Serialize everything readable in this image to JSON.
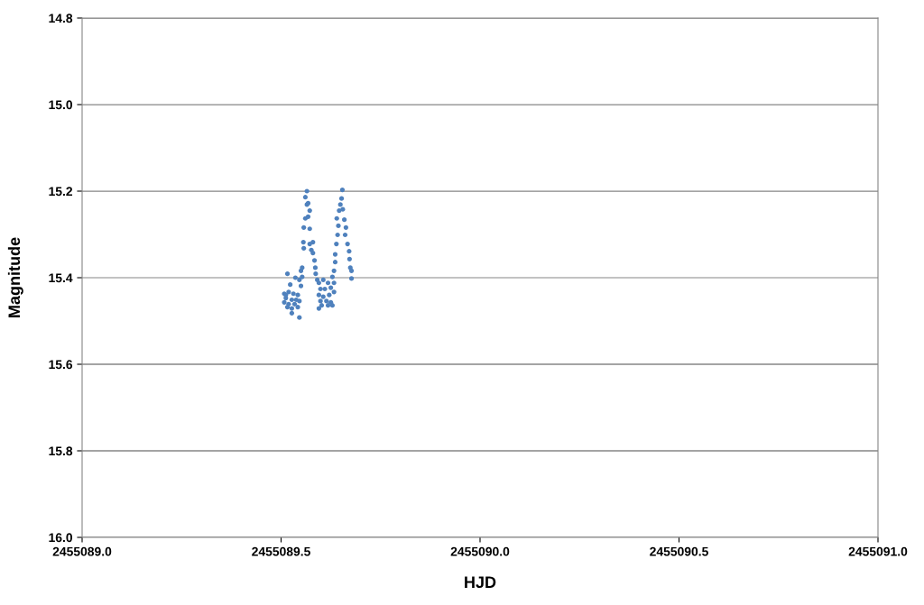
{
  "chart_data": {
    "type": "scatter",
    "xlabel": "HJD",
    "ylabel": "Magnitude",
    "xlim": [
      2455089.0,
      2455091.0
    ],
    "xticks": [
      {
        "value": 2455089.0,
        "label": "2455089.0"
      },
      {
        "value": 2455089.5,
        "label": "2455089.5"
      },
      {
        "value": 2455090.0,
        "label": "2455090.0"
      },
      {
        "value": 2455090.5,
        "label": "2455090.5"
      },
      {
        "value": 2455091.0,
        "label": "2455091.0"
      }
    ],
    "ylim": [
      16.0,
      14.8
    ],
    "yticks": [
      {
        "value": 14.8,
        "label": "14.8"
      },
      {
        "value": 15.0,
        "label": "15.0"
      },
      {
        "value": 15.2,
        "label": "15.2"
      },
      {
        "value": 15.4,
        "label": "15.4"
      },
      {
        "value": 15.6,
        "label": "15.6"
      },
      {
        "value": 15.8,
        "label": "15.8"
      },
      {
        "value": 16.0,
        "label": "16.0"
      }
    ],
    "grid": "y",
    "marker": "circle",
    "series": [
      {
        "color": "#4f81bd",
        "x": [
          2455089.516,
          2455089.536,
          2455089.523,
          2455089.546,
          2455089.55,
          2455089.553,
          2455089.508,
          2455089.519,
          2455089.531,
          2455089.542,
          2455089.512,
          2455089.527,
          2455089.538,
          2455089.508,
          2455089.519,
          2455089.534,
          2455089.546,
          2455089.516,
          2455089.527,
          2455089.542,
          2455089.527,
          2455089.546,
          2455089.512,
          2455089.55,
          2455089.553,
          2455089.557,
          2455089.556,
          2455089.572,
          2455089.58,
          2455089.576,
          2455089.572,
          2455089.557,
          2455089.561,
          2455089.568,
          2455089.572,
          2455089.565,
          2455089.561,
          2455089.565,
          2455089.568,
          2455089.58,
          2455089.584,
          2455089.586,
          2455089.587,
          2455089.591,
          2455089.595,
          2455089.606,
          2455089.618,
          2455089.629,
          2455089.633,
          2455089.599,
          2455089.61,
          2455089.625,
          2455089.595,
          2455089.606,
          2455089.621,
          2455089.633,
          2455089.599,
          2455089.614,
          2455089.625,
          2455089.602,
          2455089.618,
          2455089.595,
          2455089.629,
          2455089.633,
          2455089.636,
          2455089.636,
          2455089.639,
          2455089.642,
          2455089.644,
          2455089.64,
          2455089.646,
          2455089.649,
          2455089.652,
          2455089.654,
          2455089.655,
          2455089.659,
          2455089.663,
          2455089.661,
          2455089.667,
          2455089.671,
          2455089.672,
          2455089.674,
          2455089.677,
          2455089.677
        ],
        "values": [
          15.391,
          15.4,
          15.416,
          15.405,
          15.384,
          15.377,
          15.437,
          15.433,
          15.437,
          15.44,
          15.447,
          15.451,
          15.451,
          15.457,
          15.461,
          15.461,
          15.454,
          15.468,
          15.471,
          15.468,
          15.482,
          15.492,
          15.44,
          15.419,
          15.398,
          15.332,
          15.318,
          15.322,
          15.318,
          15.336,
          15.287,
          15.284,
          15.263,
          15.259,
          15.245,
          15.231,
          15.214,
          15.2,
          15.228,
          15.343,
          15.36,
          15.377,
          15.391,
          15.405,
          15.412,
          15.405,
          15.412,
          15.398,
          15.412,
          15.426,
          15.426,
          15.423,
          15.44,
          15.444,
          15.44,
          15.433,
          15.454,
          15.454,
          15.457,
          15.464,
          15.464,
          15.471,
          15.464,
          15.384,
          15.364,
          15.346,
          15.322,
          15.301,
          15.28,
          15.263,
          15.245,
          15.231,
          15.217,
          15.197,
          15.242,
          15.266,
          15.284,
          15.301,
          15.322,
          15.339,
          15.357,
          15.377,
          15.384,
          15.402
        ]
      }
    ]
  }
}
